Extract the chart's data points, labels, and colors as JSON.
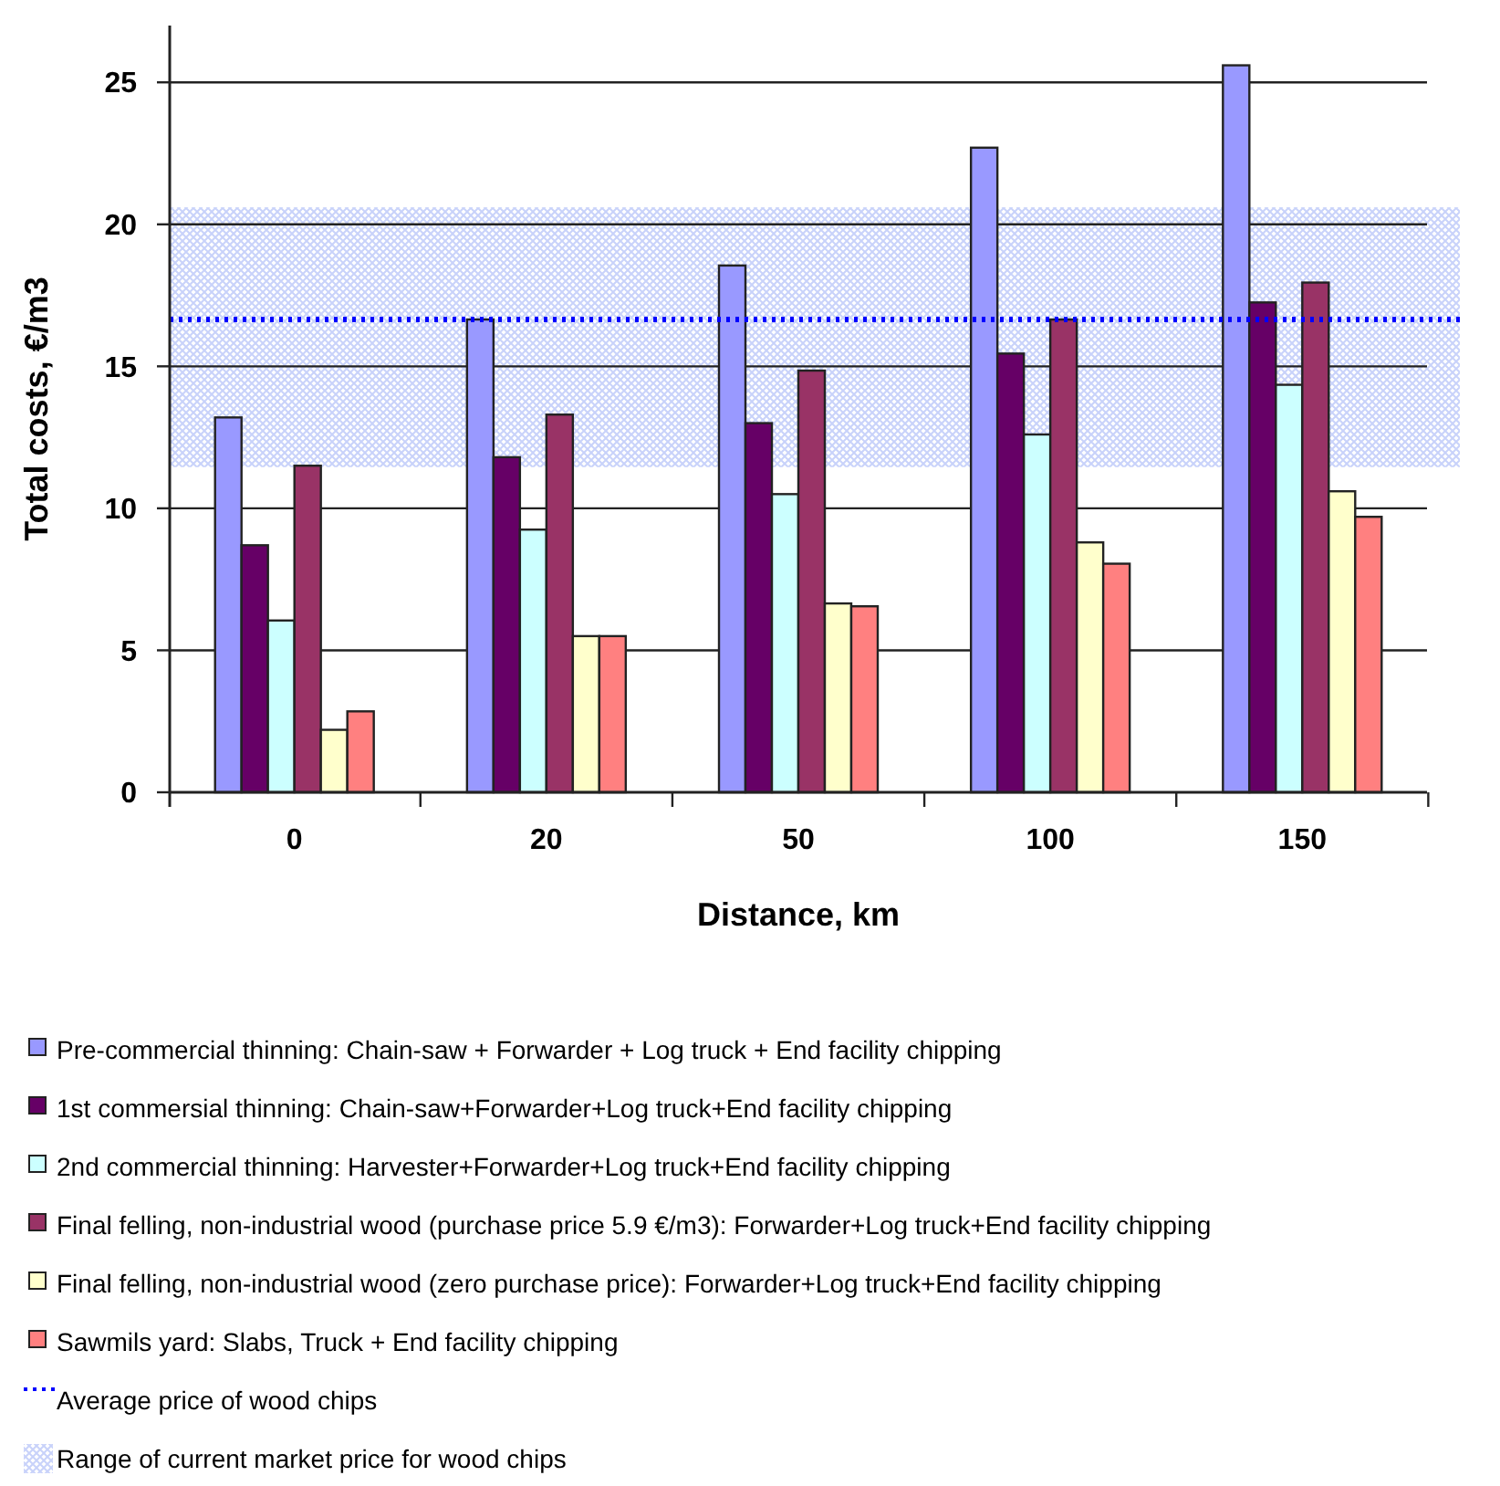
{
  "chart_data": {
    "type": "bar",
    "xlabel": "Distance, km",
    "ylabel": "Total costs, €/m3",
    "categories": [
      "0",
      "20",
      "50",
      "100",
      "150"
    ],
    "series": [
      {
        "name": "Pre-commercial thinning: Chain-saw + Forwarder + Log truck + End facility chipping",
        "color": "#9999ff",
        "values": [
          13.2,
          16.65,
          18.55,
          22.7,
          25.6
        ]
      },
      {
        "name": "1st commersial thinning: Chain-saw+Forwarder+Log truck+End facility chipping",
        "color": "#660066",
        "values": [
          8.7,
          11.8,
          13.0,
          15.45,
          17.25
        ]
      },
      {
        "name": "2nd commercial thinning: Harvester+Forwarder+Log truck+End facility chipping",
        "color": "#ccffff",
        "values": [
          6.05,
          9.25,
          10.5,
          12.6,
          14.35
        ]
      },
      {
        "name": "Final felling, non-industrial wood (purchase price 5.9 €/m3): Forwarder+Log truck+End facility chipping",
        "color": "#993366",
        "values": [
          11.5,
          13.3,
          14.85,
          16.65,
          17.95
        ]
      },
      {
        "name": "Final felling, non-industrial wood (zero purchase price): Forwarder+Log truck+End facility chipping",
        "color": "#ffffcc",
        "values": [
          2.2,
          5.5,
          6.65,
          8.8,
          10.6
        ]
      },
      {
        "name": "Sawmils yard: Slabs, Truck + End facility chipping",
        "color": "#ff8080",
        "values": [
          2.85,
          5.5,
          6.55,
          8.05,
          9.7
        ]
      }
    ],
    "ylim": [
      0,
      27
    ],
    "yticks": [
      0,
      5,
      10,
      15,
      20,
      25
    ],
    "grid": "y",
    "legend": "bottom",
    "ref_lines": [
      {
        "axis": "y",
        "value": 16.65,
        "label": "Average price of wood chips",
        "color": "#0000ff",
        "line_style": "dotted"
      }
    ],
    "bands": [
      {
        "axis": "y",
        "from": 11.45,
        "to": 20.6,
        "label": "Range of current market price for wood chips",
        "color": "#c8d2fa"
      }
    ]
  }
}
